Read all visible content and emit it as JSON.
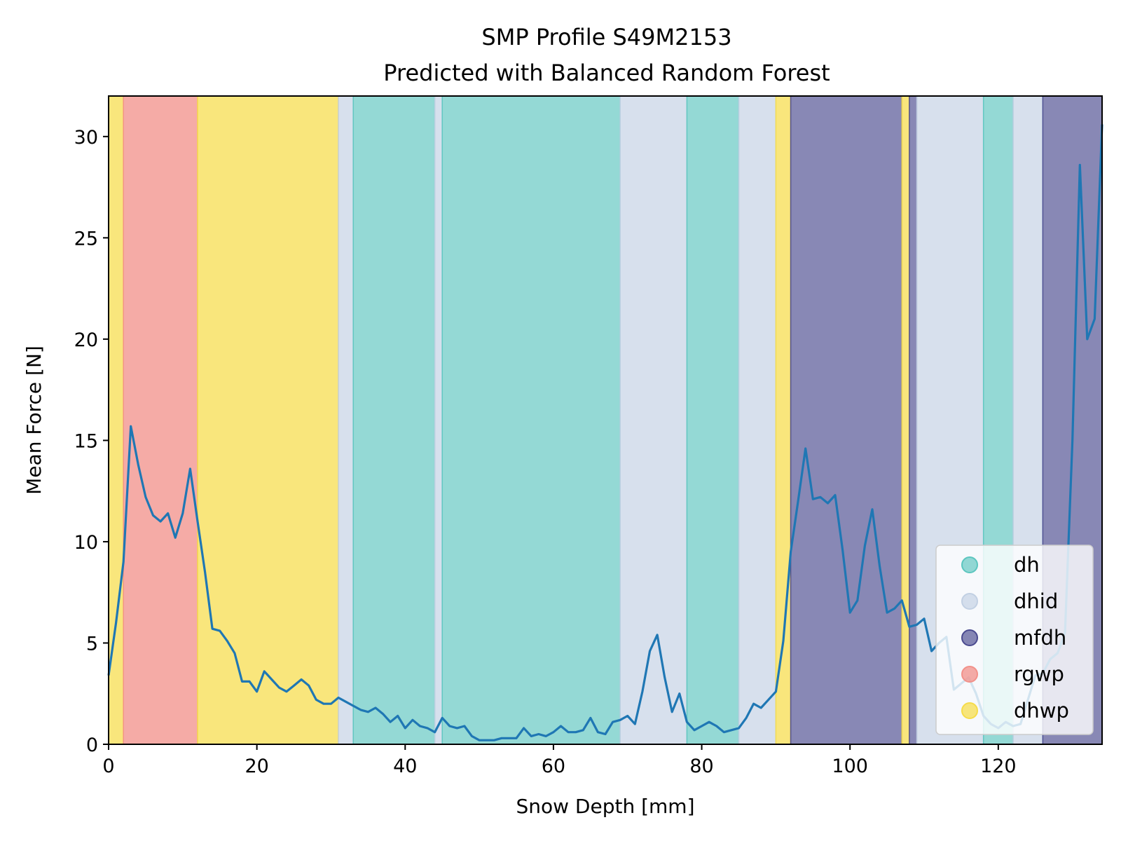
{
  "chart_data": {
    "type": "line",
    "title": "SMP Profile S49M2153",
    "subtitle": "Predicted with Balanced Random Forest",
    "xlabel": "Snow Depth [mm]",
    "ylabel": "Mean Force [N]",
    "xlim": [
      0,
      134
    ],
    "ylim": [
      0,
      32
    ],
    "xticks": [
      0,
      20,
      40,
      60,
      80,
      100,
      120
    ],
    "yticks": [
      0,
      5,
      10,
      15,
      20,
      25,
      30
    ],
    "grid": false,
    "legend_position": "lower right",
    "line_color": "#1f77b4",
    "classes": [
      {
        "label": "dh",
        "color": "#5cc6bf",
        "alpha": 0.66
      },
      {
        "label": "dhid",
        "color": "#c2d0e3",
        "alpha": 0.66
      },
      {
        "label": "mfdh",
        "color": "#4a4a8f",
        "alpha": 0.66
      },
      {
        "label": "rgwp",
        "color": "#f2918a",
        "alpha": 0.76
      },
      {
        "label": "dhwp",
        "color": "#f6dc4a",
        "alpha": 0.72
      }
    ],
    "segments": [
      {
        "start": 0,
        "end": 2,
        "class": "dhwp"
      },
      {
        "start": 2,
        "end": 12,
        "class": "rgwp"
      },
      {
        "start": 12,
        "end": 31,
        "class": "dhwp"
      },
      {
        "start": 31,
        "end": 33,
        "class": "dhid"
      },
      {
        "start": 33,
        "end": 44,
        "class": "dh"
      },
      {
        "start": 44,
        "end": 45,
        "class": "dhid"
      },
      {
        "start": 45,
        "end": 69,
        "class": "dh"
      },
      {
        "start": 69,
        "end": 78,
        "class": "dhid"
      },
      {
        "start": 78,
        "end": 85,
        "class": "dh"
      },
      {
        "start": 85,
        "end": 90,
        "class": "dhid"
      },
      {
        "start": 90,
        "end": 92,
        "class": "dhwp"
      },
      {
        "start": 92,
        "end": 107,
        "class": "mfdh"
      },
      {
        "start": 107,
        "end": 108,
        "class": "dhwp"
      },
      {
        "start": 108,
        "end": 109,
        "class": "mfdh"
      },
      {
        "start": 109,
        "end": 118,
        "class": "dhid"
      },
      {
        "start": 118,
        "end": 122,
        "class": "dh"
      },
      {
        "start": 122,
        "end": 126,
        "class": "dhid"
      },
      {
        "start": 126,
        "end": 134,
        "class": "mfdh"
      }
    ],
    "series": [
      {
        "x": [
          0,
          1,
          2,
          3,
          4,
          5,
          6,
          7,
          8,
          9,
          10,
          11,
          12,
          13,
          14,
          15,
          16,
          17,
          18,
          19,
          20,
          21,
          22,
          23,
          24,
          25,
          26,
          27,
          28,
          29,
          30,
          31,
          32,
          33,
          34,
          35,
          36,
          37,
          38,
          39,
          40,
          41,
          42,
          43,
          44,
          45,
          46,
          47,
          48,
          49,
          50,
          51,
          52,
          53,
          54,
          55,
          56,
          57,
          58,
          59,
          60,
          61,
          62,
          63,
          64,
          65,
          66,
          67,
          68,
          69,
          70,
          71,
          72,
          73,
          74,
          75,
          76,
          77,
          78,
          79,
          80,
          81,
          82,
          83,
          84,
          85,
          86,
          87,
          88,
          89,
          90,
          91,
          92,
          93,
          94,
          95,
          96,
          97,
          98,
          99,
          100,
          101,
          102,
          103,
          104,
          105,
          106,
          107,
          108,
          109,
          110,
          111,
          112,
          113,
          114,
          115,
          116,
          117,
          118,
          119,
          120,
          121,
          122,
          123,
          124,
          125,
          126,
          127,
          128,
          129,
          130,
          131,
          132,
          133,
          134
        ],
        "values": [
          3.4,
          6.0,
          9.0,
          15.7,
          13.8,
          12.2,
          11.3,
          11.0,
          11.4,
          10.2,
          11.4,
          13.6,
          11.0,
          8.5,
          5.7,
          5.6,
          5.1,
          4.5,
          3.1,
          3.1,
          2.6,
          3.6,
          3.2,
          2.8,
          2.6,
          2.9,
          3.2,
          2.9,
          2.2,
          2.0,
          2.0,
          2.3,
          2.1,
          1.9,
          1.7,
          1.6,
          1.8,
          1.5,
          1.1,
          1.4,
          0.8,
          1.2,
          0.9,
          0.8,
          0.6,
          1.3,
          0.9,
          0.8,
          0.9,
          0.4,
          0.2,
          0.2,
          0.2,
          0.3,
          0.3,
          0.3,
          0.8,
          0.4,
          0.5,
          0.4,
          0.6,
          0.9,
          0.6,
          0.6,
          0.7,
          1.3,
          0.6,
          0.5,
          1.1,
          1.2,
          1.4,
          1.0,
          2.6,
          4.6,
          5.4,
          3.3,
          1.6,
          2.5,
          1.1,
          0.7,
          0.9,
          1.1,
          0.9,
          0.6,
          0.7,
          0.8,
          1.3,
          2.0,
          1.8,
          2.2,
          2.6,
          5.1,
          9.5,
          12.0,
          14.6,
          12.1,
          12.2,
          11.9,
          12.3,
          9.6,
          6.5,
          7.1,
          9.8,
          11.6,
          8.8,
          6.5,
          6.7,
          7.1,
          5.8,
          5.9,
          6.2,
          4.6,
          5.0,
          5.3,
          2.7,
          3.0,
          3.3,
          2.5,
          1.4,
          1.0,
          0.8,
          1.1,
          0.9,
          1.0,
          2.2,
          3.4,
          3.5,
          4.2,
          4.5,
          5.5,
          15.0,
          28.6,
          20.0,
          21.0,
          30.6
        ]
      }
    ]
  }
}
